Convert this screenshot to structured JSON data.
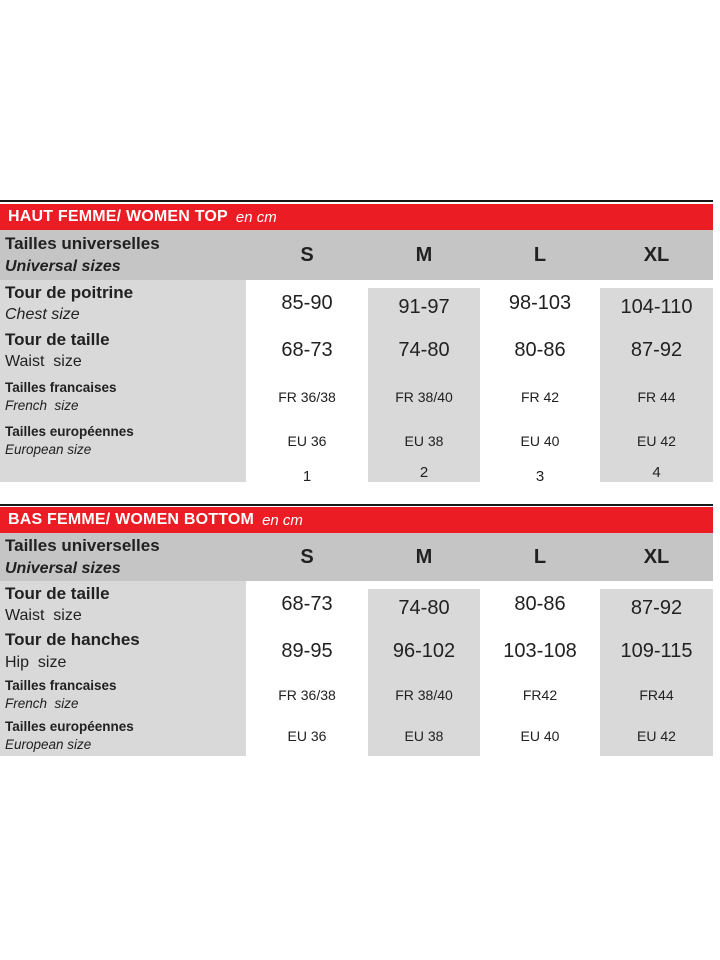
{
  "colors": {
    "red": "#ec1c24",
    "header_gray": "#c5c5c5",
    "cell_gray": "#d9d9d9",
    "text": "#212121",
    "top_rule": "#171717"
  },
  "tables": [
    {
      "title": "HAUT FEMME/ WOMEN TOP",
      "unit": "en cm",
      "header": {
        "label_fr": "Tailles universelles",
        "label_en": "Universal sizes",
        "sizes": [
          "S",
          "M",
          "L",
          "XL"
        ]
      },
      "rows": [
        {
          "fr": "Tour de poitrine",
          "en": "Chest size",
          "values": [
            "85-90",
            "91-97",
            "98-103",
            "104-110"
          ]
        },
        {
          "fr": "Tour de taille",
          "en": "Waist  size",
          "values": [
            "68-73",
            "74-80",
            "80-86",
            "87-92"
          ]
        },
        {
          "fr": "Tailles francaises",
          "en": "French  size",
          "values": [
            "FR 36/38",
            "FR 38/40",
            "FR 42",
            "FR 44"
          ]
        },
        {
          "fr": "Tailles européennes",
          "en": "European size",
          "values": [
            "EU 36",
            "EU 38",
            "EU 40",
            "EU 42"
          ]
        },
        {
          "fr": "",
          "en": "",
          "values": [
            "1",
            "2",
            "3",
            "4"
          ]
        }
      ]
    },
    {
      "title": "BAS FEMME/ WOMEN BOTTOM",
      "unit": "en cm",
      "header": {
        "label_fr": "Tailles universelles",
        "label_en": "Universal sizes",
        "sizes": [
          "S",
          "M",
          "L",
          "XL"
        ]
      },
      "rows": [
        {
          "fr": "Tour de taille",
          "en": "Waist  size",
          "values": [
            "68-73",
            "74-80",
            "80-86",
            "87-92"
          ]
        },
        {
          "fr": "Tour de hanches",
          "en": "Hip  size",
          "values": [
            "89-95",
            "96-102",
            "103-108",
            "109-115"
          ]
        },
        {
          "fr": "Tailles francaises",
          "en": "French  size",
          "values": [
            "FR 36/38",
            "FR 38/40",
            "FR42",
            "FR44"
          ]
        },
        {
          "fr": "Tailles européennes",
          "en": "European size",
          "values": [
            "EU 36",
            "EU 38",
            "EU 40",
            "EU 42"
          ]
        }
      ]
    }
  ]
}
